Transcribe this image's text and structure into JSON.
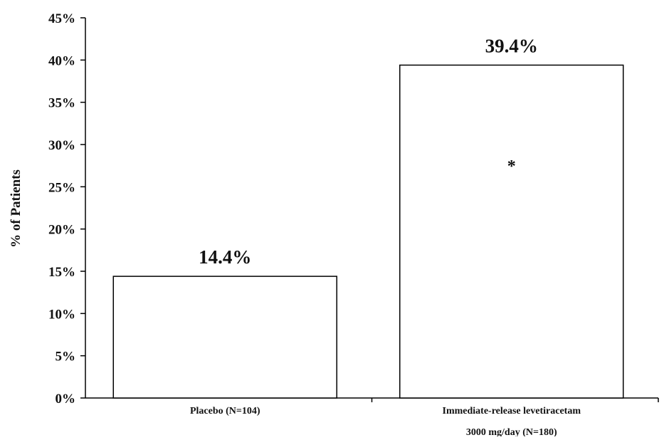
{
  "chart_data": {
    "type": "bar",
    "title": "",
    "xlabel": "",
    "ylabel": "% of Patients",
    "ylim": [
      0,
      45
    ],
    "y_ticks": [
      0,
      5,
      10,
      15,
      20,
      25,
      30,
      35,
      40,
      45
    ],
    "y_tick_labels": [
      "0%",
      "5%",
      "10%",
      "15%",
      "20%",
      "25%",
      "30%",
      "35%",
      "40%",
      "45%"
    ],
    "categories": [
      [
        "Placebo (N=104)"
      ],
      [
        "Immediate-release levetiracetam",
        "3000 mg/day (N=180)"
      ]
    ],
    "values": [
      14.4,
      39.4
    ],
    "data_labels": [
      "14.4%",
      "39.4%"
    ],
    "annotations": [
      {
        "category_index": 1,
        "text": "*"
      }
    ],
    "grid": false,
    "legend": "none",
    "bar_fill": "#ffffff",
    "bar_stroke": "#000000"
  }
}
